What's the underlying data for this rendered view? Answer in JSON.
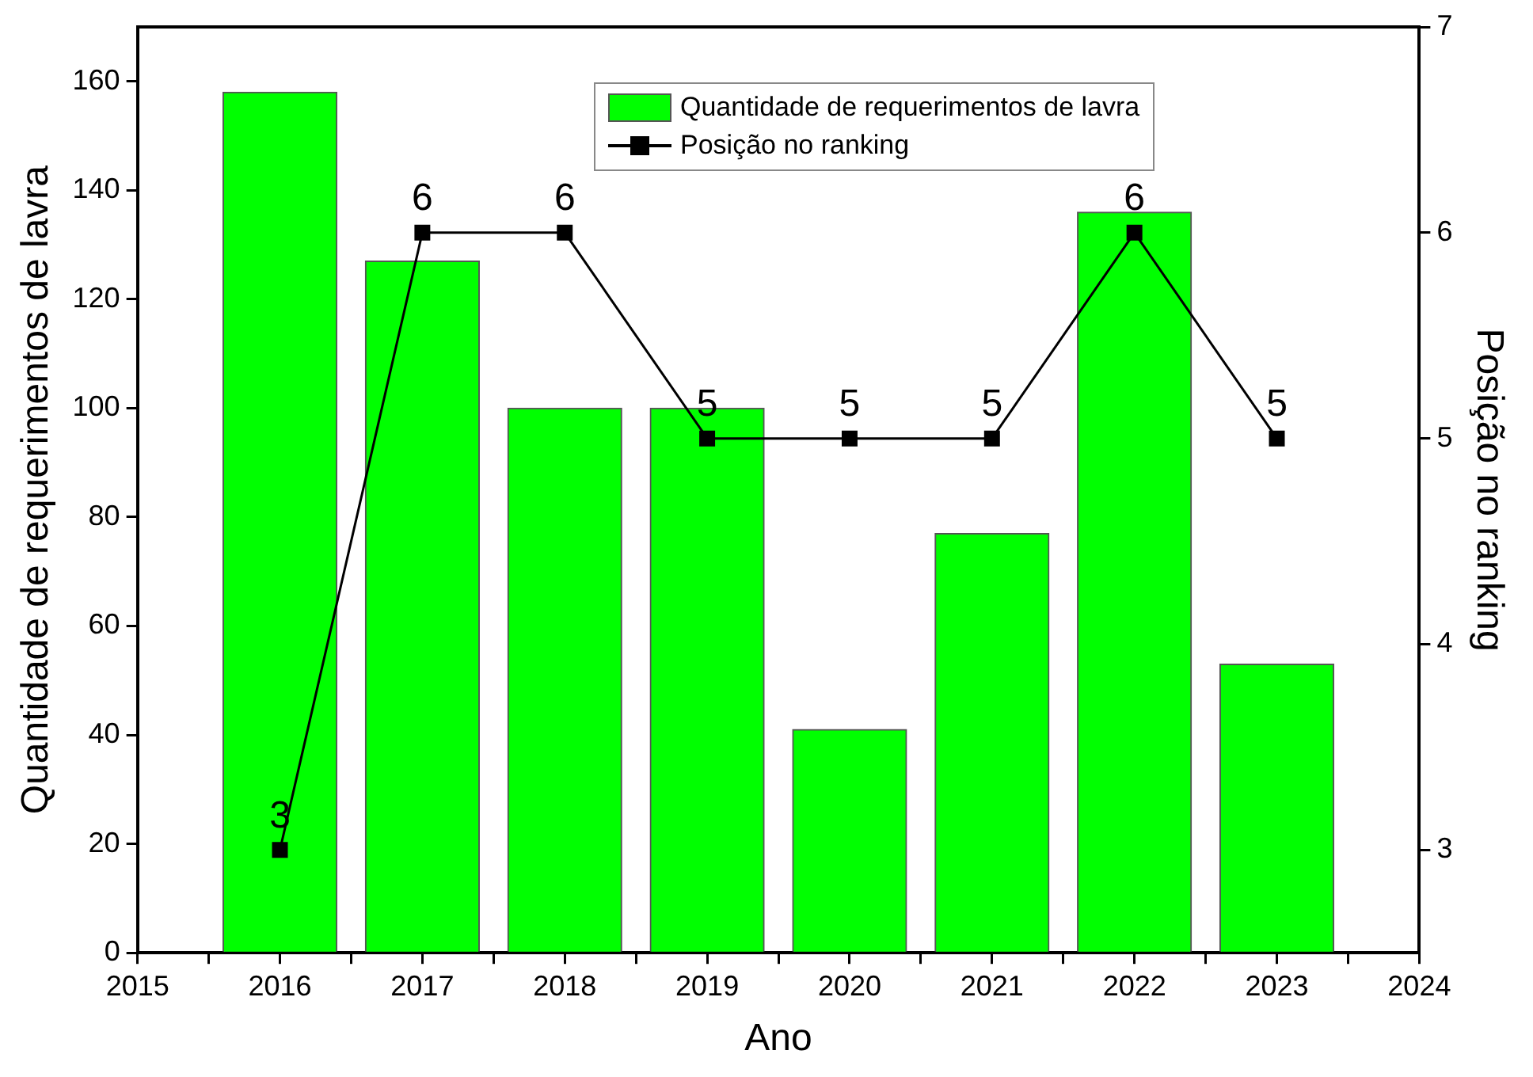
{
  "chart_data": {
    "type": "bar",
    "xlabel": "Ano",
    "ylabel": "Quantidade de requerimentos de lavra",
    "y2label": "Posição no ranking",
    "x": [
      2016,
      2017,
      2018,
      2019,
      2020,
      2021,
      2022,
      2023
    ],
    "series": [
      {
        "name": "Quantidade de requerimentos de lavra",
        "color": "#00ff00",
        "values": [
          158,
          127,
          100,
          100,
          41,
          77,
          136,
          53
        ]
      },
      {
        "name": "Posição no ranking",
        "type": "line",
        "axis": "y2",
        "color": "#000000",
        "marker": "square",
        "values": [
          3,
          6,
          6,
          5,
          5,
          5,
          6,
          5
        ],
        "value_labels": [
          "3",
          "6",
          "6",
          "5",
          "5",
          "5",
          "6",
          "5"
        ]
      }
    ],
    "xlim": [
      2015,
      2024
    ],
    "xticks": [
      2015,
      {
        "value": 2015.5,
        "label": null
      },
      2016,
      {
        "value": 2016.5,
        "label": null
      },
      2017,
      {
        "value": 2017.5,
        "label": null
      },
      2018,
      {
        "value": 2018.5,
        "label": null
      },
      2019,
      {
        "value": 2019.5,
        "label": null
      },
      2020,
      {
        "value": 2020.5,
        "label": null
      },
      2021,
      {
        "value": 2021.5,
        "label": null
      },
      2022,
      {
        "value": 2022.5,
        "label": null
      },
      2023,
      {
        "value": 2023.5,
        "label": null
      },
      2024
    ],
    "ylim": [
      0,
      170
    ],
    "yticks": [
      0,
      20,
      40,
      60,
      80,
      100,
      120,
      140,
      160
    ],
    "y2lim": [
      2.5,
      7
    ],
    "y2ticks": [
      3,
      4,
      5,
      6,
      7
    ],
    "grid": false,
    "legend": "top"
  }
}
